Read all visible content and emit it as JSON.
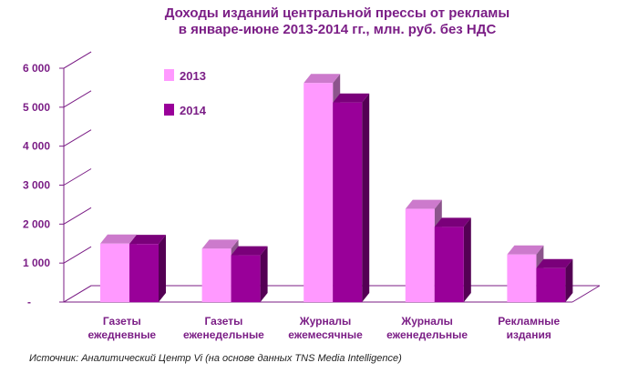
{
  "chart_data": {
    "type": "bar",
    "title_lines": [
      "Доходы изданий центральной прессы от рекламы",
      "в январе-июне 2013-2014 гг., млн. руб. без НДС"
    ],
    "categories": [
      [
        "Газеты",
        "ежедневные"
      ],
      [
        "Газеты",
        "еженедельные"
      ],
      [
        "Журналы",
        "ежемесячные"
      ],
      [
        "Журналы",
        "еженедельные"
      ],
      [
        "Рекламные",
        "издания"
      ]
    ],
    "series": [
      {
        "name": "2013",
        "values": [
          1500,
          1370,
          5620,
          2390,
          1220
        ],
        "color": "#ff99ff"
      },
      {
        "name": "2014",
        "values": [
          1490,
          1200,
          5120,
          1930,
          870
        ],
        "color": "#990099"
      }
    ],
    "ylim": [
      0,
      6000
    ],
    "yticks": [
      "-",
      "1 000",
      "2 000",
      "3 000",
      "4 000",
      "5 000",
      "6 000"
    ],
    "legend_position": "top-left",
    "grid": false,
    "source": "Источник: Аналитический Центр Vi (на основе данных TNS Media Intelligence)",
    "colors": {
      "text": "#7b1e86",
      "axis": "#7b1e86"
    }
  }
}
